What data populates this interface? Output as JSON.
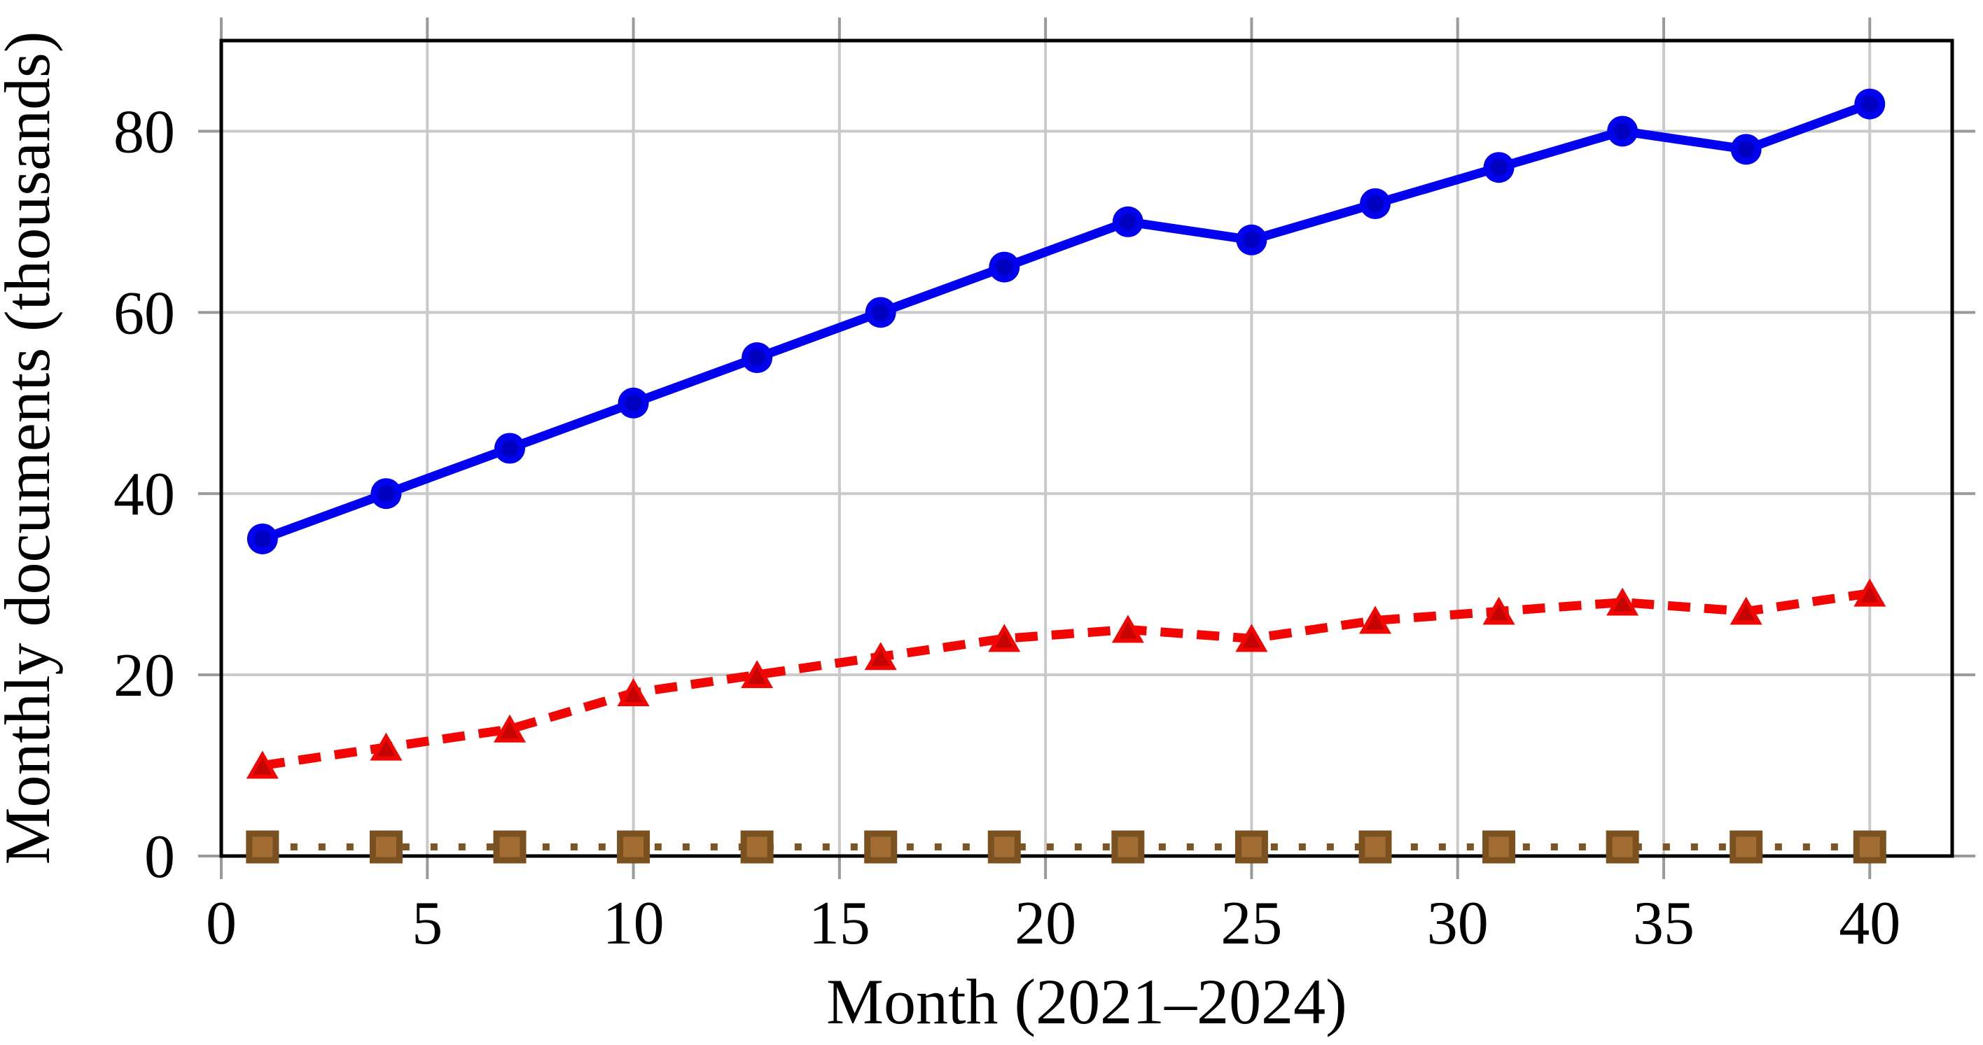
{
  "chart_data": {
    "type": "line",
    "title": "",
    "xlabel": "Month (2021–2024)",
    "ylabel": "Monthly documents (thousands)",
    "xlim": [
      0,
      42
    ],
    "ylim": [
      0,
      90
    ],
    "x_ticks": [
      0,
      5,
      10,
      15,
      20,
      25,
      30,
      35,
      40
    ],
    "y_ticks": [
      0,
      20,
      40,
      60,
      80
    ],
    "grid": true,
    "legend": "none",
    "x": [
      1,
      4,
      7,
      10,
      13,
      16,
      19,
      22,
      25,
      28,
      31,
      34,
      37,
      40
    ],
    "series": [
      {
        "name": "blue-circle-series",
        "marker": "circle",
        "line_style": "solid",
        "line_color": "#0202ee",
        "marker_fill": "#0000c0",
        "marker_edge": "#0202ee",
        "values": [
          35,
          40,
          45,
          50,
          55,
          60,
          65,
          70,
          68,
          72,
          76,
          80,
          78,
          83
        ]
      },
      {
        "name": "red-triangle-series",
        "marker": "triangle",
        "line_style": "dashed",
        "line_color": "#f20603",
        "marker_fill": "#c40504",
        "marker_edge": "#f20603",
        "values": [
          10,
          12,
          14,
          18,
          20,
          22,
          24,
          25,
          24,
          26,
          27,
          28,
          27,
          29
        ]
      },
      {
        "name": "brown-square-series",
        "marker": "square",
        "line_style": "dotted",
        "line_color": "#7d5424",
        "marker_fill": "#a26d33",
        "marker_edge": "#7c5120",
        "values": [
          1,
          1,
          1,
          1,
          1,
          1,
          1,
          1,
          1,
          1,
          1,
          1,
          1,
          1
        ]
      }
    ],
    "colors": {
      "grid": "#c9c9c9",
      "tick": "#9a9a9a",
      "frame": "#000000",
      "text": "#000000",
      "background": "#ffffff"
    }
  }
}
